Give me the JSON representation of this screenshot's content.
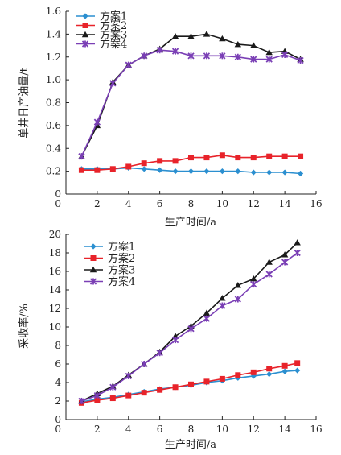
{
  "chart_data": [
    {
      "type": "line",
      "title": "",
      "xlabel": "生产时间/a",
      "ylabel": "单井日产油量/t",
      "xlim": [
        0,
        16
      ],
      "ylim": [
        0,
        1.6
      ],
      "xticks": [
        "0",
        "2",
        "4",
        "6",
        "8",
        "10",
        "12",
        "14",
        "16"
      ],
      "yticks": [
        "0",
        "0.2",
        "0.4",
        "0.6",
        "0.8",
        "1.0",
        "1.2",
        "1.4",
        "1.6"
      ],
      "legend_position": "top-left",
      "grid": false,
      "series": [
        {
          "name": "方案1",
          "color": "#2b8fd0",
          "marker": "diamond",
          "x": [
            1,
            2,
            3,
            4,
            5,
            6,
            7,
            8,
            9,
            10,
            11,
            12,
            13,
            14,
            15
          ],
          "values": [
            0.22,
            0.22,
            0.22,
            0.23,
            0.22,
            0.21,
            0.2,
            0.2,
            0.2,
            0.2,
            0.2,
            0.19,
            0.19,
            0.19,
            0.18
          ]
        },
        {
          "name": "方案2",
          "color": "#e8232a",
          "marker": "square",
          "x": [
            1,
            2,
            3,
            4,
            5,
            6,
            7,
            8,
            9,
            10,
            11,
            12,
            13,
            14,
            15
          ],
          "values": [
            0.21,
            0.21,
            0.22,
            0.24,
            0.27,
            0.29,
            0.29,
            0.32,
            0.32,
            0.34,
            0.32,
            0.32,
            0.33,
            0.33,
            0.33
          ]
        },
        {
          "name": "方案3",
          "color": "#1a1a1a",
          "marker": "triangle",
          "x": [
            1,
            2,
            3,
            4,
            5,
            6,
            7,
            8,
            9,
            10,
            11,
            12,
            13,
            14,
            15
          ],
          "values": [
            0.33,
            0.6,
            0.98,
            1.13,
            1.21,
            1.27,
            1.38,
            1.38,
            1.4,
            1.36,
            1.31,
            1.3,
            1.24,
            1.25,
            1.18
          ]
        },
        {
          "name": "方案4",
          "color": "#7a3fb5",
          "marker": "x",
          "x": [
            1,
            2,
            3,
            4,
            5,
            6,
            7,
            8,
            9,
            10,
            11,
            12,
            13,
            14,
            15
          ],
          "values": [
            0.33,
            0.63,
            0.97,
            1.13,
            1.21,
            1.26,
            1.25,
            1.21,
            1.21,
            1.21,
            1.2,
            1.18,
            1.18,
            1.22,
            1.17
          ]
        }
      ]
    },
    {
      "type": "line",
      "title": "",
      "xlabel": "生产时间/a",
      "ylabel": "采收率/%",
      "xlim": [
        0,
        16
      ],
      "ylim": [
        0,
        20
      ],
      "xticks": [
        "0",
        "2",
        "4",
        "6",
        "8",
        "10",
        "12",
        "14",
        "16"
      ],
      "yticks": [
        "0",
        "2",
        "4",
        "6",
        "8",
        "10",
        "12",
        "14",
        "16",
        "18",
        "20"
      ],
      "legend_position": "top-left",
      "grid": false,
      "series": [
        {
          "name": "方案1",
          "color": "#2b8fd0",
          "marker": "diamond",
          "x": [
            1,
            2,
            3,
            4,
            5,
            6,
            7,
            8,
            9,
            10,
            11,
            12,
            13,
            14,
            14.8
          ],
          "values": [
            1.9,
            2.2,
            2.4,
            2.7,
            3.0,
            3.3,
            3.5,
            3.7,
            4.0,
            4.2,
            4.5,
            4.7,
            4.9,
            5.2,
            5.3
          ]
        },
        {
          "name": "方案2",
          "color": "#e8232a",
          "marker": "square",
          "x": [
            1,
            2,
            3,
            4,
            5,
            6,
            7,
            8,
            9,
            10,
            11,
            12,
            13,
            14,
            14.8
          ],
          "values": [
            1.8,
            2.1,
            2.3,
            2.6,
            2.9,
            3.2,
            3.5,
            3.8,
            4.1,
            4.4,
            4.8,
            5.1,
            5.5,
            5.8,
            6.1
          ]
        },
        {
          "name": "方案3",
          "color": "#1a1a1a",
          "marker": "triangle",
          "x": [
            1,
            2,
            3,
            4,
            5,
            6,
            7,
            8,
            9,
            10,
            11,
            12,
            13,
            14,
            14.8
          ],
          "values": [
            2.0,
            2.8,
            3.6,
            4.8,
            6.0,
            7.3,
            9.0,
            10.1,
            11.5,
            13.1,
            14.5,
            15.2,
            17.0,
            17.8,
            19.1
          ]
        },
        {
          "name": "方案4",
          "color": "#7a3fb5",
          "marker": "x",
          "x": [
            1,
            2,
            3,
            4,
            5,
            6,
            7,
            8,
            9,
            10,
            11,
            12,
            13,
            14,
            14.8
          ],
          "values": [
            2.0,
            2.6,
            3.5,
            4.7,
            6.0,
            7.2,
            8.6,
            9.8,
            10.9,
            12.3,
            13.0,
            14.6,
            15.7,
            17.0,
            18.0
          ]
        }
      ]
    }
  ]
}
